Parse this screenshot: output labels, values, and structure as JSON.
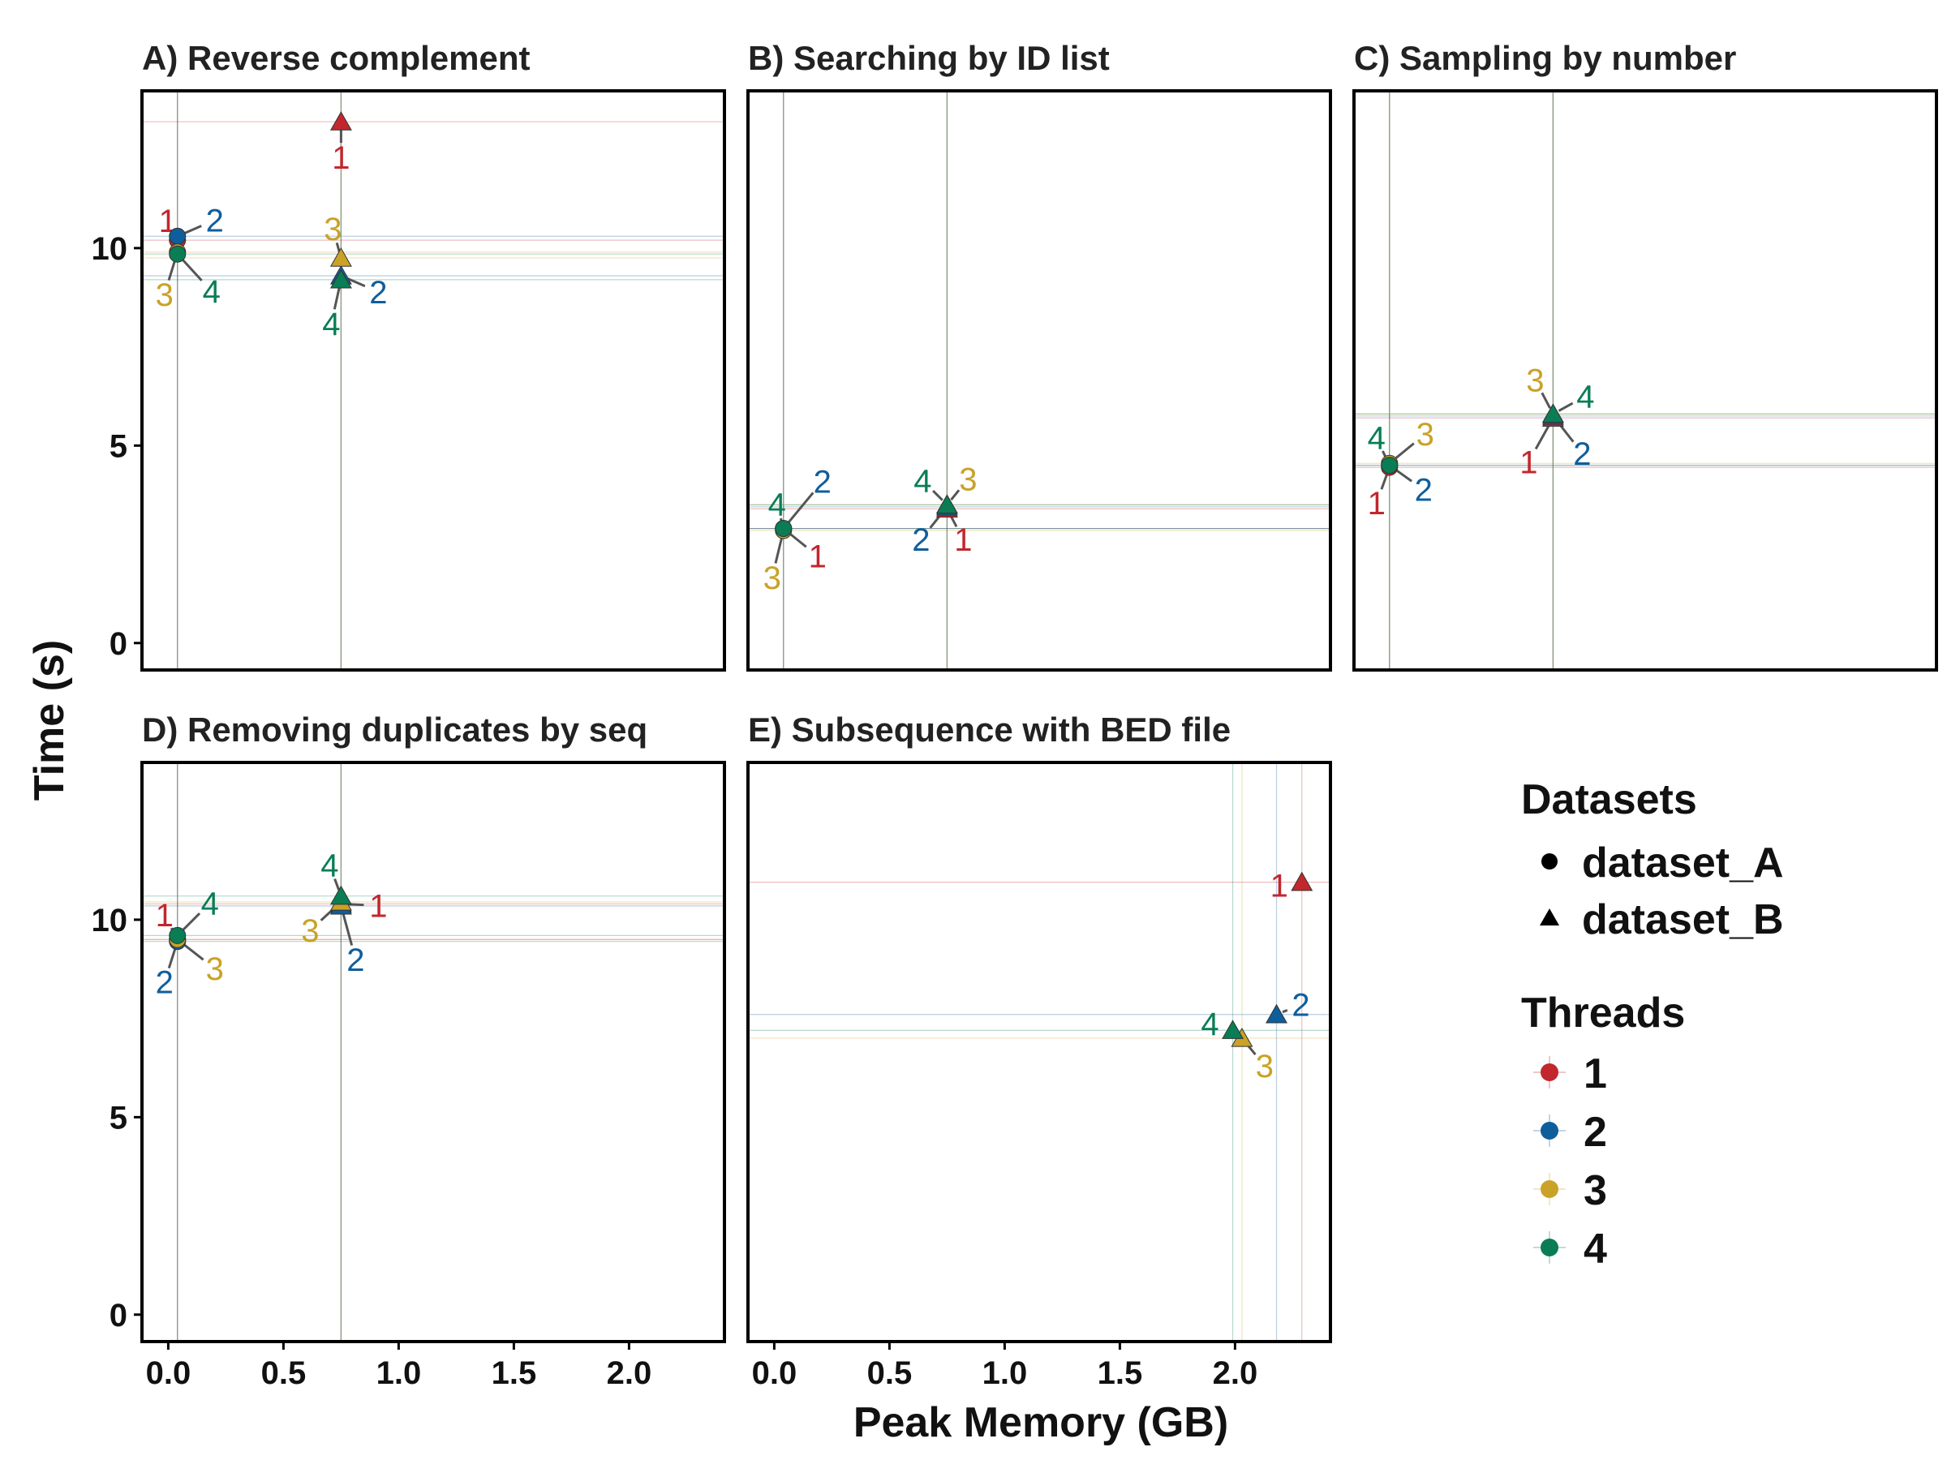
{
  "colors": {
    "1": "#C1272D",
    "2": "#0F5E9C",
    "3": "#C9A227",
    "4": "#0A7D55"
  },
  "axes": {
    "xlabel": "Peak Memory (GB)",
    "ylabel": "Time (s)"
  },
  "legend": {
    "datasets_title": "Datasets",
    "datasets": [
      {
        "label": "dataset_A",
        "shape": "circle"
      },
      {
        "label": "dataset_B",
        "shape": "triangle"
      }
    ],
    "threads_title": "Threads",
    "threads": [
      {
        "label": "1",
        "key": "1"
      },
      {
        "label": "2",
        "key": "2"
      },
      {
        "label": "3",
        "key": "3"
      },
      {
        "label": "4",
        "key": "4"
      }
    ]
  },
  "chart_data": [
    {
      "type": "scatter",
      "title": "A) Reverse complement",
      "xlim": [
        -0.1,
        2.4
      ],
      "ylim": [
        -0.6,
        13.9
      ],
      "xticks": [],
      "yticks": [
        0,
        5,
        10
      ],
      "points": [
        {
          "dataset": "dataset_A",
          "threads": "1",
          "x": 0.04,
          "y": 10.2
        },
        {
          "dataset": "dataset_A",
          "threads": "2",
          "x": 0.04,
          "y": 10.3
        },
        {
          "dataset": "dataset_A",
          "threads": "3",
          "x": 0.04,
          "y": 9.9
        },
        {
          "dataset": "dataset_A",
          "threads": "4",
          "x": 0.04,
          "y": 9.85
        },
        {
          "dataset": "dataset_B",
          "threads": "1",
          "x": 0.75,
          "y": 13.2
        },
        {
          "dataset": "dataset_B",
          "threads": "2",
          "x": 0.75,
          "y": 9.3
        },
        {
          "dataset": "dataset_B",
          "threads": "3",
          "x": 0.75,
          "y": 9.75
        },
        {
          "dataset": "dataset_B",
          "threads": "4",
          "x": 0.75,
          "y": 9.2
        }
      ]
    },
    {
      "type": "scatter",
      "title": "B) Searching by ID list",
      "xlim": [
        -0.1,
        2.4
      ],
      "ylim": [
        -0.6,
        13.9
      ],
      "xticks": [],
      "yticks": [],
      "points": [
        {
          "dataset": "dataset_A",
          "threads": "1",
          "x": 0.04,
          "y": 2.9
        },
        {
          "dataset": "dataset_A",
          "threads": "2",
          "x": 0.04,
          "y": 2.9
        },
        {
          "dataset": "dataset_A",
          "threads": "3",
          "x": 0.04,
          "y": 2.85
        },
        {
          "dataset": "dataset_A",
          "threads": "4",
          "x": 0.04,
          "y": 2.9
        },
        {
          "dataset": "dataset_B",
          "threads": "1",
          "x": 0.75,
          "y": 3.4
        },
        {
          "dataset": "dataset_B",
          "threads": "2",
          "x": 0.75,
          "y": 3.45
        },
        {
          "dataset": "dataset_B",
          "threads": "3",
          "x": 0.75,
          "y": 3.5
        },
        {
          "dataset": "dataset_B",
          "threads": "4",
          "x": 0.75,
          "y": 3.5
        }
      ]
    },
    {
      "type": "scatter",
      "title": "C) Sampling by number",
      "xlim": [
        -0.1,
        2.4
      ],
      "ylim": [
        -0.6,
        13.9
      ],
      "xticks": [],
      "yticks": [],
      "points": [
        {
          "dataset": "dataset_A",
          "threads": "1",
          "x": 0.04,
          "y": 4.45
        },
        {
          "dataset": "dataset_A",
          "threads": "2",
          "x": 0.04,
          "y": 4.5
        },
        {
          "dataset": "dataset_A",
          "threads": "3",
          "x": 0.04,
          "y": 4.55
        },
        {
          "dataset": "dataset_A",
          "threads": "4",
          "x": 0.04,
          "y": 4.5
        },
        {
          "dataset": "dataset_B",
          "threads": "1",
          "x": 0.75,
          "y": 5.7
        },
        {
          "dataset": "dataset_B",
          "threads": "2",
          "x": 0.75,
          "y": 5.75
        },
        {
          "dataset": "dataset_B",
          "threads": "3",
          "x": 0.75,
          "y": 5.8
        },
        {
          "dataset": "dataset_B",
          "threads": "4",
          "x": 0.75,
          "y": 5.8
        }
      ]
    },
    {
      "type": "scatter",
      "title": "D) Removing duplicates by seq",
      "xlim": [
        -0.1,
        2.4
      ],
      "ylim": [
        -0.6,
        13.9
      ],
      "xticks": [
        0.0,
        0.5,
        1.0,
        1.5,
        2.0
      ],
      "yticks": [
        0,
        5,
        10
      ],
      "points": [
        {
          "dataset": "dataset_A",
          "threads": "1",
          "x": 0.04,
          "y": 9.5
        },
        {
          "dataset": "dataset_A",
          "threads": "2",
          "x": 0.04,
          "y": 9.45
        },
        {
          "dataset": "dataset_A",
          "threads": "3",
          "x": 0.04,
          "y": 9.5
        },
        {
          "dataset": "dataset_A",
          "threads": "4",
          "x": 0.04,
          "y": 9.6
        },
        {
          "dataset": "dataset_B",
          "threads": "1",
          "x": 0.75,
          "y": 10.4
        },
        {
          "dataset": "dataset_B",
          "threads": "2",
          "x": 0.75,
          "y": 10.35
        },
        {
          "dataset": "dataset_B",
          "threads": "3",
          "x": 0.75,
          "y": 10.45
        },
        {
          "dataset": "dataset_B",
          "threads": "4",
          "x": 0.75,
          "y": 10.6
        }
      ]
    },
    {
      "type": "scatter",
      "title": "E) Subsequence with BED file",
      "xlim": [
        -0.1,
        2.4
      ],
      "ylim": [
        -0.6,
        13.9
      ],
      "xticks": [
        0.0,
        0.5,
        1.0,
        1.5,
        2.0
      ],
      "yticks": [],
      "points": [
        {
          "dataset": "dataset_B",
          "threads": "1",
          "x": 2.29,
          "y": 10.95
        },
        {
          "dataset": "dataset_B",
          "threads": "2",
          "x": 2.18,
          "y": 7.6
        },
        {
          "dataset": "dataset_B",
          "threads": "3",
          "x": 2.03,
          "y": 7.0
        },
        {
          "dataset": "dataset_B",
          "threads": "4",
          "x": 1.99,
          "y": 7.2
        }
      ]
    }
  ]
}
